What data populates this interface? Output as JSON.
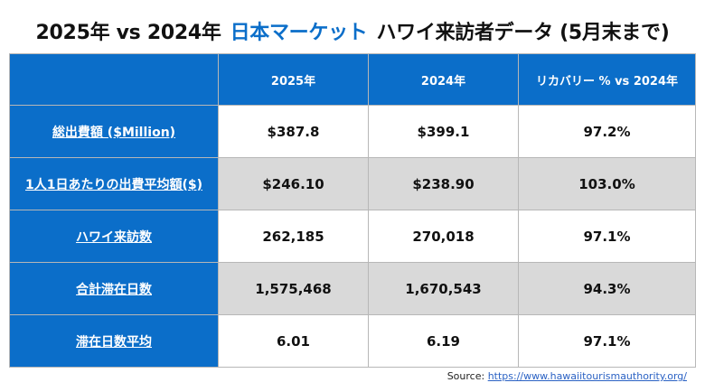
{
  "title": {
    "part1": "2025年 vs 2024年",
    "part2": "日本マーケット",
    "part3": "ハワイ来訪者データ (5月末まで)"
  },
  "colors": {
    "accent_blue": "#0b6ec9",
    "alt_row_gray": "#d9d9d9",
    "link_blue": "#2b62c4"
  },
  "table": {
    "headers": [
      "",
      "2025年",
      "2024年",
      "リカバリー % vs 2024年"
    ],
    "rows": [
      {
        "label": "総出費額 ($Million)",
        "v2025": "$387.8",
        "v2024": "$399.1",
        "recovery": "97.2%"
      },
      {
        "label": "1人1日あたりの出費平均額($)",
        "v2025": "$246.10",
        "v2024": "$238.90",
        "recovery": "103.0%"
      },
      {
        "label": "ハワイ来訪数",
        "v2025": "262,185",
        "v2024": "270,018",
        "recovery": "97.1%"
      },
      {
        "label": "合計滞在日数",
        "v2025": "1,575,468",
        "v2024": "1,670,543",
        "recovery": "94.3%"
      },
      {
        "label": "滞在日数平均",
        "v2025": "6.01",
        "v2024": "6.19",
        "recovery": "97.1%"
      }
    ]
  },
  "source": {
    "prefix": "Source:",
    "url": "https://www.hawaiitourismauthority.org/"
  }
}
